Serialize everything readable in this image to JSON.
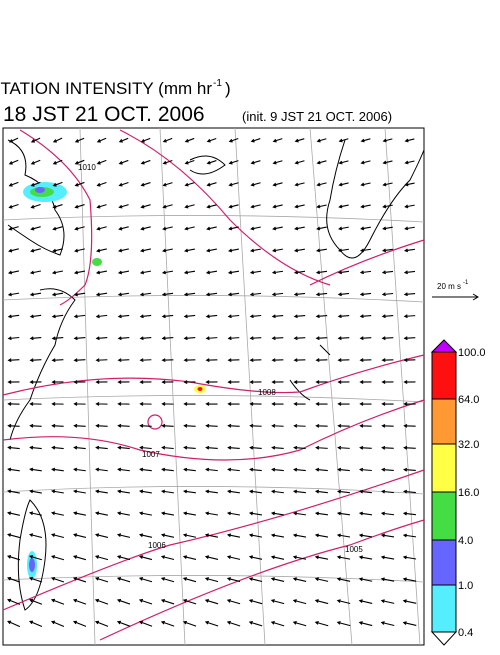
{
  "header": {
    "title": "PRECIPITATION INTENSITY (mm hr",
    "title_exponent": "-1",
    "title_close": ")",
    "valid_time": "18 JST 21 OCT. 2006",
    "init_time": "(init. 9 JST 21 OCT. 2006)"
  },
  "wind_scale": {
    "label": "20 m s",
    "exponent": "-1"
  },
  "isobars": [
    "1010",
    "1008",
    "1007",
    "1006",
    "1005"
  ],
  "legend": {
    "labels": [
      "100.0",
      "64.0",
      "32.0",
      "16.0",
      "4.0",
      "1.0",
      "0.4"
    ],
    "colors": [
      "#c000ff",
      "#ff1010",
      "#ff9933",
      "#ffff44",
      "#44dd44",
      "#6666ff",
      "#55eeff",
      "#ffffff"
    ]
  }
}
